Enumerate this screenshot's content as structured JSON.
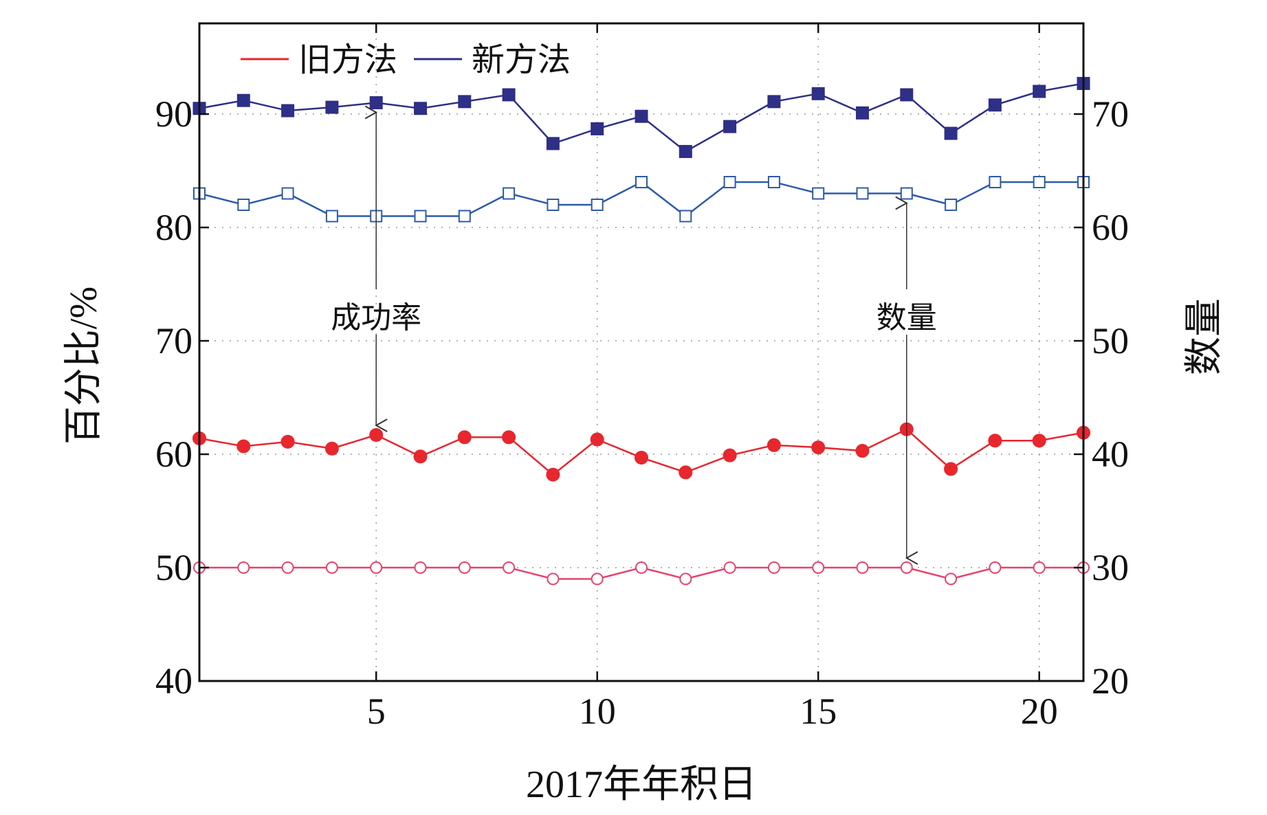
{
  "chart_data": {
    "type": "line",
    "xlabel": "2017年年积日",
    "ylabel_left": "百分比/%",
    "ylabel_right": "数量",
    "x_ticks": [
      5,
      10,
      15,
      20
    ],
    "xlim": [
      1,
      21
    ],
    "ylim_left": [
      40,
      98
    ],
    "ylim_right": [
      20,
      78
    ],
    "y_ticks_left": [
      40,
      50,
      60,
      70,
      80,
      90
    ],
    "y_ticks_right": [
      20,
      30,
      40,
      50,
      60,
      70
    ],
    "legend": {
      "position": "top-left",
      "entries": [
        {
          "label": "旧方法",
          "color": "#e8262d"
        },
        {
          "label": "新方法",
          "color": "#2e2f86"
        }
      ]
    },
    "annotations": [
      {
        "text": "成功率",
        "x": 5
      },
      {
        "text": "数量",
        "x": 17
      }
    ],
    "x": [
      1,
      2,
      3,
      4,
      5,
      6,
      7,
      8,
      9,
      10,
      11,
      12,
      13,
      14,
      15,
      16,
      17,
      18,
      19,
      20,
      21
    ],
    "series": [
      {
        "method": "新方法",
        "measure": "成功率",
        "axis": "left",
        "marker": "filled-square",
        "color": "#2e2f86",
        "values": [
          90.5,
          91.2,
          90.3,
          90.6,
          91.0,
          90.5,
          91.1,
          91.7,
          87.4,
          88.7,
          89.8,
          86.7,
          88.9,
          91.1,
          91.8,
          90.1,
          91.7,
          88.3,
          90.8,
          92.0,
          92.7
        ]
      },
      {
        "method": "新方法",
        "measure": "数量",
        "axis": "right",
        "marker": "open-square",
        "color": "#2e5aa8",
        "values": [
          63,
          62,
          63,
          61,
          61,
          61,
          61,
          63,
          62,
          62,
          64,
          61,
          64,
          64,
          63,
          63,
          63,
          62,
          64,
          64,
          64
        ]
      },
      {
        "method": "旧方法",
        "measure": "成功率",
        "axis": "left",
        "marker": "filled-circle",
        "color": "#e8262d",
        "values": [
          61.4,
          60.7,
          61.1,
          60.5,
          61.7,
          59.8,
          61.5,
          61.5,
          58.2,
          61.3,
          59.7,
          58.4,
          59.9,
          60.8,
          60.6,
          60.3,
          62.2,
          58.7,
          61.2,
          61.2,
          61.9
        ]
      },
      {
        "method": "旧方法",
        "measure": "数量",
        "axis": "right",
        "marker": "open-circle",
        "color": "#e8416b",
        "values": [
          30,
          30,
          30,
          30,
          30,
          30,
          30,
          30,
          29,
          29,
          30,
          29,
          30,
          30,
          30,
          30,
          30,
          29,
          30,
          30,
          30
        ]
      }
    ]
  }
}
